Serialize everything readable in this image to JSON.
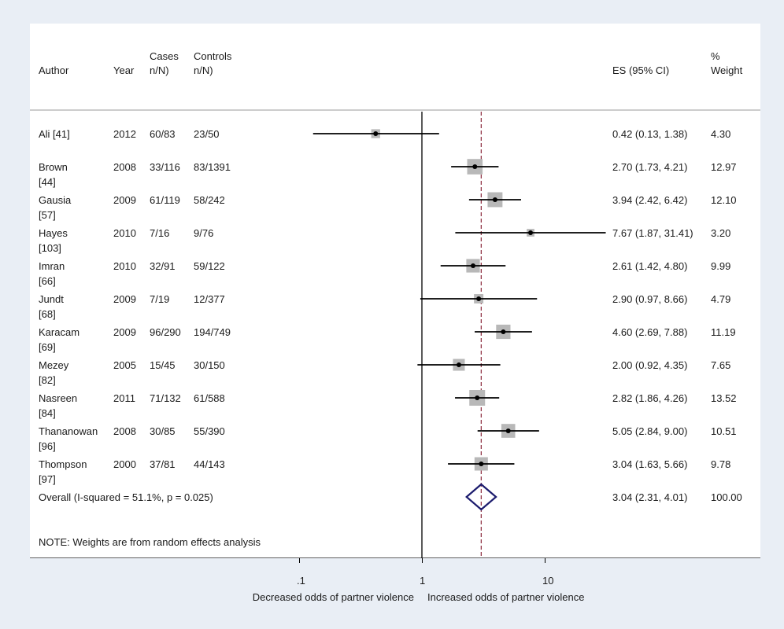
{
  "chart_data": {
    "type": "forest",
    "headers": {
      "author": "Author",
      "year": "Year",
      "cases": "Cases\nn/N)",
      "controls": "Controls\nn/N)",
      "es": "ES (95% CI)",
      "weight": "%\nWeight"
    },
    "studies": [
      {
        "author": "Ali [41]",
        "year": "2012",
        "cases": "60/83",
        "controls": "23/50",
        "es": 0.42,
        "lo": 0.13,
        "hi": 1.38,
        "es_text": "0.42 (0.13, 1.38)",
        "weight": 4.3,
        "weight_text": "4.30"
      },
      {
        "author": "Brown\n[44]",
        "year": "2008",
        "cases": "33/116",
        "controls": "83/1391",
        "es": 2.7,
        "lo": 1.73,
        "hi": 4.21,
        "es_text": "2.70 (1.73, 4.21)",
        "weight": 12.97,
        "weight_text": "12.97"
      },
      {
        "author": "Gausia\n[57]",
        "year": "2009",
        "cases": "61/119",
        "controls": "58/242",
        "es": 3.94,
        "lo": 2.42,
        "hi": 6.42,
        "es_text": "3.94 (2.42, 6.42)",
        "weight": 12.1,
        "weight_text": "12.10"
      },
      {
        "author": "Hayes\n[103]",
        "year": "2010",
        "cases": "7/16",
        "controls": "9/76",
        "es": 7.67,
        "lo": 1.87,
        "hi": 31.41,
        "es_text": "7.67 (1.87, 31.41)",
        "weight": 3.2,
        "weight_text": "3.20"
      },
      {
        "author": "Imran\n[66]",
        "year": "2010",
        "cases": "32/91",
        "controls": "59/122",
        "es": 2.61,
        "lo": 1.42,
        "hi": 4.8,
        "es_text": "2.61 (1.42, 4.80)",
        "weight": 9.99,
        "weight_text": "9.99"
      },
      {
        "author": "Jundt\n[68]",
        "year": "2009",
        "cases": "7/19",
        "controls": "12/377",
        "es": 2.9,
        "lo": 0.97,
        "hi": 8.66,
        "es_text": "2.90 (0.97, 8.66)",
        "weight": 4.79,
        "weight_text": "4.79"
      },
      {
        "author": "Karacam\n[69]",
        "year": "2009",
        "cases": "96/290",
        "controls": "194/749",
        "es": 4.6,
        "lo": 2.69,
        "hi": 7.88,
        "es_text": "4.60 (2.69, 7.88)",
        "weight": 11.19,
        "weight_text": "11.19"
      },
      {
        "author": "Mezey\n[82]",
        "year": "2005",
        "cases": "15/45",
        "controls": "30/150",
        "es": 2.0,
        "lo": 0.92,
        "hi": 4.35,
        "es_text": "2.00 (0.92, 4.35)",
        "weight": 7.65,
        "weight_text": "7.65"
      },
      {
        "author": "Nasreen\n[84]",
        "year": "2011",
        "cases": "71/132",
        "controls": "61/588",
        "es": 2.82,
        "lo": 1.86,
        "hi": 4.26,
        "es_text": "2.82 (1.86, 4.26)",
        "weight": 13.52,
        "weight_text": "13.52"
      },
      {
        "author": "Thananowan\n[96]",
        "year": "2008",
        "cases": "30/85",
        "controls": "55/390",
        "es": 5.05,
        "lo": 2.84,
        "hi": 9.0,
        "es_text": "5.05 (2.84, 9.00)",
        "weight": 10.51,
        "weight_text": "10.51"
      },
      {
        "author": "Thompson\n[97]",
        "year": "2000",
        "cases": "37/81",
        "controls": "44/143",
        "es": 3.04,
        "lo": 1.63,
        "hi": 5.66,
        "es_text": "3.04 (1.63, 5.66)",
        "weight": 9.78,
        "weight_text": "9.78"
      }
    ],
    "overall": {
      "label": "Overall  (I-squared = 51.1%, p = 0.025)",
      "es": 3.04,
      "lo": 2.31,
      "hi": 4.01,
      "es_text": "3.04 (2.31, 4.01)",
      "weight_text": "100.00"
    },
    "note": "NOTE: Weights are from random effects analysis",
    "x_ticks": [
      {
        "value": 0.1,
        "label": ".1"
      },
      {
        "value": 1,
        "label": "1"
      },
      {
        "value": 10,
        "label": "10"
      }
    ],
    "x_scale": "log",
    "null_line": 1,
    "xlabel_left": "Decreased odds of partner violence",
    "xlabel_right": "Increased odds of partner violence",
    "colors": {
      "background": "#e9eef5",
      "panel": "#ffffff",
      "ci_line": "#000000",
      "weight_box": "#b8b8b8",
      "point": "#000000",
      "overall_diamond": "#1c1c6e",
      "overall_line": "#8b2a3c"
    }
  }
}
